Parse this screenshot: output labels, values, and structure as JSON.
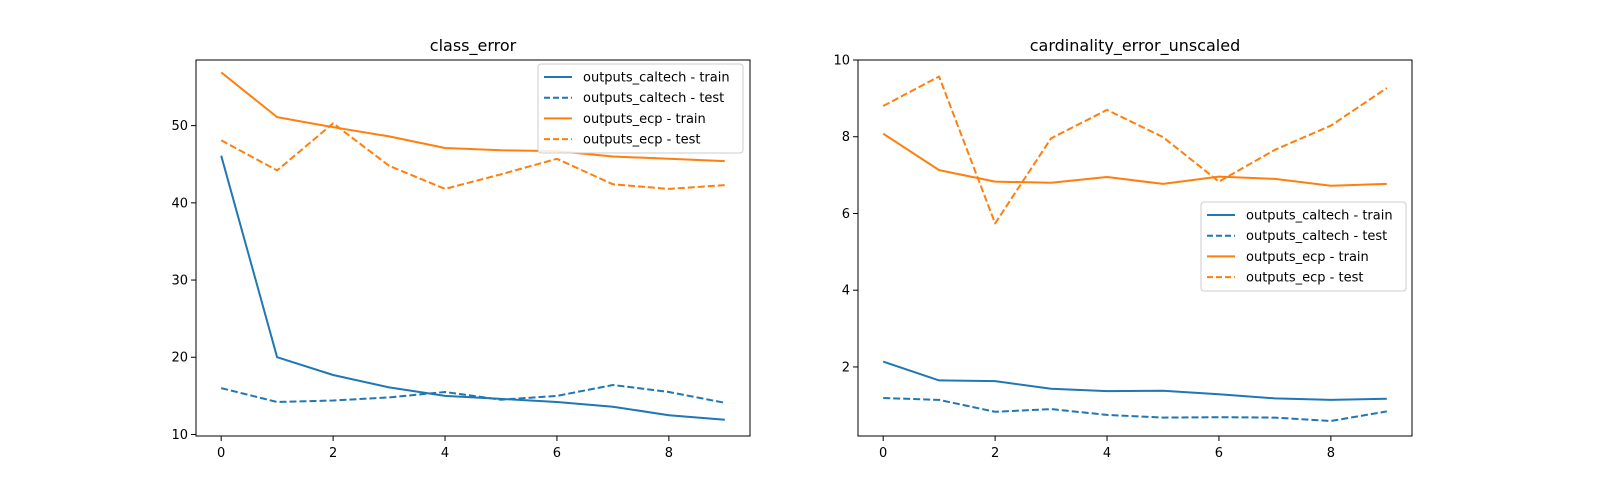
{
  "charts": [
    {
      "title": "class_error",
      "x_ticks": [
        0,
        2,
        4,
        6,
        8
      ],
      "y_ticks": [
        10,
        20,
        30,
        40,
        50
      ],
      "legend": [
        "outputs_caltech - train",
        "outputs_caltech - test",
        "outputs_ecp - train",
        "outputs_ecp - test"
      ]
    },
    {
      "title": "cardinality_error_unscaled",
      "x_ticks": [
        0,
        2,
        4,
        6,
        8
      ],
      "y_ticks": [
        2,
        4,
        6,
        8,
        10
      ],
      "legend": [
        "outputs_caltech - train",
        "outputs_caltech - test",
        "outputs_ecp - train",
        "outputs_ecp - test"
      ]
    }
  ],
  "chart_data": [
    {
      "type": "line",
      "title": "class_error",
      "xlabel": "",
      "ylabel": "",
      "xlim": [
        -0.45,
        9.45
      ],
      "ylim": [
        9.8,
        58.5
      ],
      "grid": false,
      "legend_position": "upper right",
      "x": [
        0,
        1,
        2,
        3,
        4,
        5,
        6,
        7,
        8,
        9
      ],
      "series": [
        {
          "name": "outputs_caltech - train",
          "color": "#1f77b4",
          "dash": "solid",
          "values": [
            46.1,
            20.0,
            17.7,
            16.1,
            15.0,
            14.6,
            14.2,
            13.6,
            12.5,
            11.9
          ]
        },
        {
          "name": "outputs_caltech - test",
          "color": "#1f77b4",
          "dash": "dashed",
          "values": [
            16.0,
            14.2,
            14.4,
            14.8,
            15.5,
            14.5,
            15.0,
            16.4,
            15.5,
            14.1
          ]
        },
        {
          "name": "outputs_ecp - train",
          "color": "#ff7f0e",
          "dash": "solid",
          "values": [
            56.9,
            51.1,
            49.8,
            48.6,
            47.1,
            46.8,
            46.7,
            46.0,
            45.7,
            45.4
          ]
        },
        {
          "name": "outputs_ecp - test",
          "color": "#ff7f0e",
          "dash": "dashed",
          "values": [
            48.1,
            44.2,
            50.3,
            44.8,
            41.8,
            43.7,
            45.7,
            42.4,
            41.8,
            42.3
          ]
        }
      ]
    },
    {
      "type": "line",
      "title": "cardinality_error_unscaled",
      "xlabel": "",
      "ylabel": "",
      "xlim": [
        -0.45,
        9.45
      ],
      "ylim": [
        0.2,
        10.0
      ],
      "grid": false,
      "legend_position": "center right",
      "x": [
        0,
        1,
        2,
        3,
        4,
        5,
        6,
        7,
        8,
        9
      ],
      "series": [
        {
          "name": "outputs_caltech - train",
          "color": "#1f77b4",
          "dash": "solid",
          "values": [
            2.14,
            1.65,
            1.63,
            1.43,
            1.37,
            1.38,
            1.29,
            1.18,
            1.14,
            1.17
          ]
        },
        {
          "name": "outputs_caltech - test",
          "color": "#1f77b4",
          "dash": "dashed",
          "values": [
            1.19,
            1.14,
            0.83,
            0.9,
            0.75,
            0.68,
            0.69,
            0.68,
            0.59,
            0.84
          ]
        },
        {
          "name": "outputs_ecp - train",
          "color": "#ff7f0e",
          "dash": "solid",
          "values": [
            8.08,
            7.13,
            6.83,
            6.8,
            6.95,
            6.77,
            6.96,
            6.9,
            6.72,
            6.77
          ]
        },
        {
          "name": "outputs_ecp - test",
          "color": "#ff7f0e",
          "dash": "dashed",
          "values": [
            8.8,
            9.57,
            5.74,
            7.96,
            8.7,
            7.99,
            6.83,
            7.66,
            8.29,
            9.27
          ]
        }
      ]
    }
  ]
}
